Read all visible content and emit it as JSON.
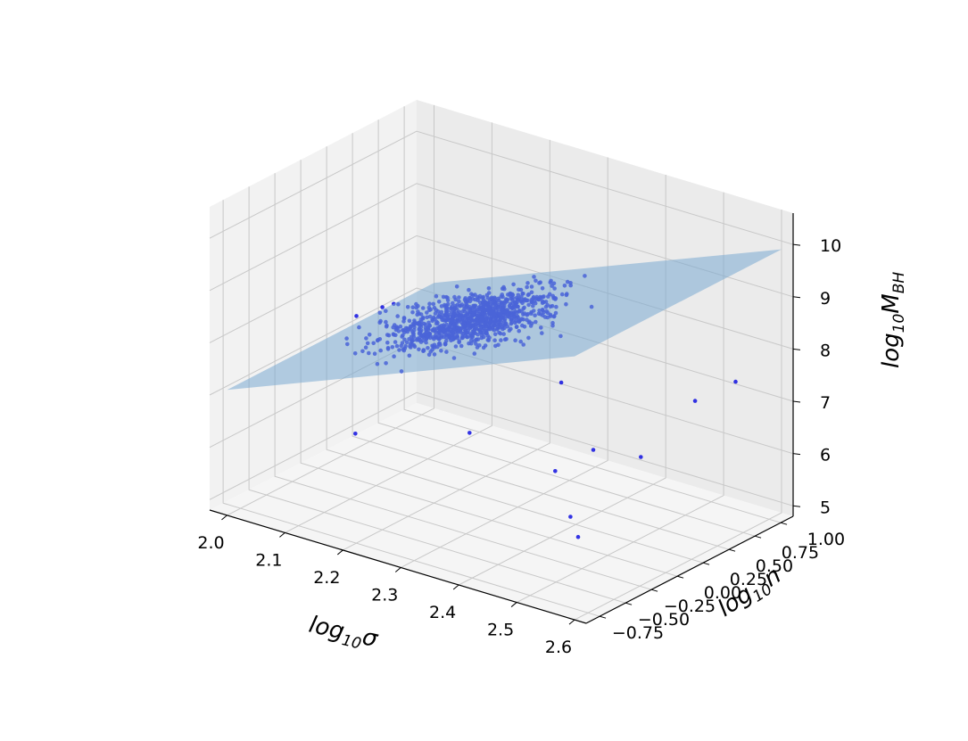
{
  "chart_data": {
    "type": "scatter",
    "projection": "3d",
    "xlabel": {
      "base": "log",
      "sub": "10",
      "sym": "σ"
    },
    "ylabel": {
      "base": "log",
      "sub": "10",
      "sym": "n"
    },
    "zlabel": {
      "base": "log",
      "sub": "10",
      "sym": "M",
      "symsub": "BH"
    },
    "xticks": [
      "2.0",
      "2.1",
      "2.2",
      "2.3",
      "2.4",
      "2.5",
      "2.6"
    ],
    "yticks": [
      "−0.75",
      "−0.50",
      "−0.25",
      "0.00",
      "0.25",
      "0.50",
      "0.75",
      "1.00"
    ],
    "zticks": [
      "5",
      "6",
      "7",
      "8",
      "9",
      "10"
    ],
    "xlim": [
      1.97,
      2.62
    ],
    "ylim": [
      -0.88,
      1.12
    ],
    "zlim": [
      4.8,
      10.6
    ],
    "grid": true,
    "point_color": "#1010e0",
    "plane_color": "#7aaad2",
    "series": [
      {
        "type": "scatter",
        "n_points": 1000,
        "fit": {
          "intercept": -1.6,
          "slope_x": 4.4,
          "slope_y": 0.0
        },
        "outliers": [
          {
            "x": 2.35,
            "y": 0.7,
            "z": 5.6
          },
          {
            "x": 2.32,
            "y": 0.5,
            "z": 5.3
          },
          {
            "x": 2.45,
            "y": 0.6,
            "z": 5.9
          },
          {
            "x": 2.4,
            "y": 0.2,
            "z": 5.0
          },
          {
            "x": 2.44,
            "y": 0.05,
            "z": 4.9
          },
          {
            "x": 2.19,
            "y": 0.4,
            "z": 5.7
          },
          {
            "x": 2.25,
            "y": 0.95,
            "z": 6.3
          },
          {
            "x": 2.49,
            "y": 0.9,
            "z": 6.8
          },
          {
            "x": 2.56,
            "y": 0.9,
            "z": 7.4
          },
          {
            "x": 2.1,
            "y": -0.2,
            "z": 6.0
          }
        ]
      },
      {
        "type": "surface",
        "name": "",
        "z_formula": "-1.6 + 4.4*x",
        "alpha": 0.5
      }
    ]
  }
}
